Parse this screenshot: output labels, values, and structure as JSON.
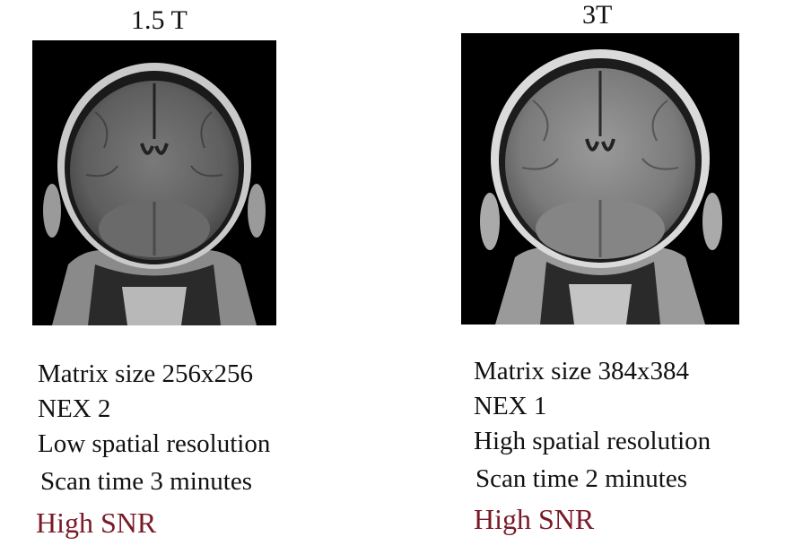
{
  "left_panel": {
    "title": "1.5 T",
    "image_desc": "coronal-t1-mri-1.5t",
    "lines": {
      "matrix": "Matrix size  256x256",
      "nex": "NEX 2",
      "resolution": "Low spatial resolution",
      "scan_time": "Scan time  3 minutes",
      "snr": "High SNR"
    }
  },
  "right_panel": {
    "title": "3T",
    "image_desc": "coronal-t1-mri-3t",
    "lines": {
      "matrix": "Matrix size 384x384",
      "nex": "NEX 1",
      "resolution": "High spatial resolution",
      "scan_time": "Scan time  2 minutes",
      "snr": "High SNR"
    }
  },
  "colors": {
    "snr_text": "#7a1a26",
    "body_text": "#111111",
    "mri_background": "#000000"
  }
}
